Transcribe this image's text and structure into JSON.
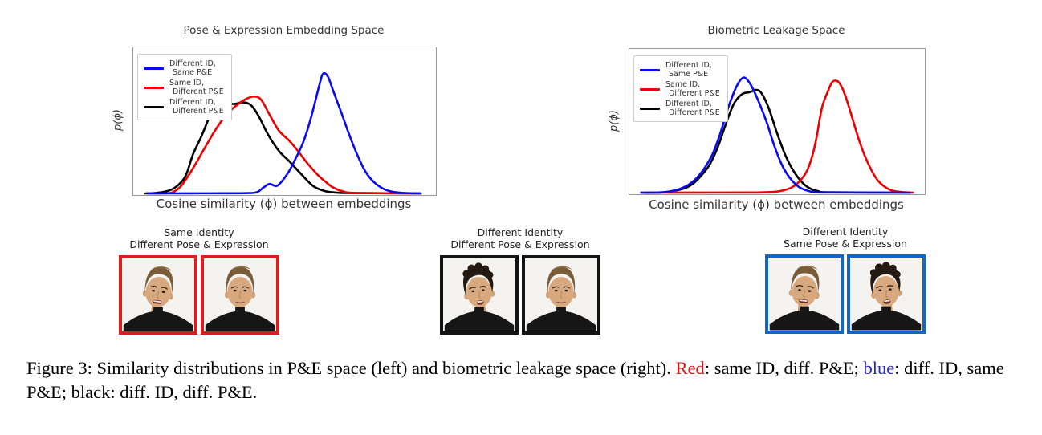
{
  "figure": {
    "charts": [
      {
        "title": "Pose & Expression Embedding Space",
        "xlabel": "Cosine similarity (ϕ) between embeddings",
        "ylabel": "p(ϕ)",
        "legend": [
          {
            "line1": "Different ID,",
            "line2": "Same P&E"
          },
          {
            "line1": "Same ID,",
            "line2": "Different P&E"
          },
          {
            "line1": "Different ID,",
            "line2": "Different P&E"
          }
        ]
      },
      {
        "title": "Biometric Leakage Space",
        "xlabel": "Cosine similarity (ϕ) between embeddings",
        "ylabel": "p(ϕ)",
        "legend": [
          {
            "line1": "Different ID,",
            "line2": "Same P&E"
          },
          {
            "line1": "Same ID,",
            "line2": "Different P&E"
          },
          {
            "line1": "Different ID,",
            "line2": "Different P&E"
          }
        ]
      }
    ],
    "pairs": [
      {
        "label_line1": "Same Identity",
        "label_line2": "Different Pose & Expression",
        "frame_color": "#d42020",
        "photos": [
          0,
          1
        ]
      },
      {
        "label_line1": "Different Identity",
        "label_line2": "Different Pose & Expression",
        "frame_color": "#141414",
        "photos": [
          2,
          3
        ]
      },
      {
        "label_line1": "Different Identity",
        "label_line2": "Same Pose & Expression",
        "frame_color": "#1565c5",
        "photos": [
          4,
          5
        ]
      }
    ],
    "photos": [
      {
        "person": "young-man-brown-hair",
        "hair": "brown",
        "tilt": 7,
        "mouth": "grimace",
        "gaze": "down"
      },
      {
        "person": "young-man-brown-hair",
        "hair": "brown",
        "tilt": 0,
        "mouth": "closed",
        "gaze": "front"
      },
      {
        "person": "young-man-dark-curly",
        "hair": "curly",
        "tilt": -6,
        "mouth": "open",
        "gaze": "left"
      },
      {
        "person": "young-man-brown-hair",
        "hair": "brown",
        "tilt": 0,
        "mouth": "closed",
        "gaze": "front"
      },
      {
        "person": "young-man-brown-hair",
        "hair": "brown",
        "tilt": 6,
        "mouth": "grimace",
        "gaze": "down"
      },
      {
        "person": "young-man-dark-curly",
        "hair": "curly",
        "tilt": -5,
        "mouth": "open",
        "gaze": "left"
      }
    ]
  },
  "caption": {
    "segments": [
      {
        "text": "Figure 3: Similarity distributions in P&E space (left) and biometric leakage space (right). ",
        "color": "#000000"
      },
      {
        "text": "Red",
        "color": "#dd1111"
      },
      {
        "text": ": same ID, diff. P&E; ",
        "color": "#000000"
      },
      {
        "text": "blue",
        "color": "#2222dd"
      },
      {
        "text": ": diff. ID, same P&E; black: diff. ID, diff. P&E.",
        "color": "#000000"
      }
    ]
  },
  "chart_data": [
    {
      "type": "line",
      "title": "Pose & Expression Embedding Space",
      "xlabel": "Cosine similarity (ϕ) between embeddings",
      "ylabel": "p(ϕ)",
      "axis_ticks": "none",
      "legend_position": "upper left",
      "note": "kernel-density style curves; x and y in normalized plot fractions (0-1), y = density height",
      "series": [
        {
          "name": "Different ID, Same P&E",
          "color": "#0a0af0",
          "z": 3,
          "points": [
            [
              0.05,
              0
            ],
            [
              0.3,
              0.001
            ],
            [
              0.38,
              0.002
            ],
            [
              0.41,
              0.01
            ],
            [
              0.43,
              0.04
            ],
            [
              0.45,
              0.065
            ],
            [
              0.476,
              0.054
            ],
            [
              0.508,
              0.13
            ],
            [
              0.534,
              0.228
            ],
            [
              0.561,
              0.348
            ],
            [
              0.582,
              0.48
            ],
            [
              0.6,
              0.62
            ],
            [
              0.616,
              0.75
            ],
            [
              0.627,
              0.82
            ],
            [
              0.643,
              0.8
            ],
            [
              0.661,
              0.7
            ],
            [
              0.688,
              0.55
            ],
            [
              0.714,
              0.4
            ],
            [
              0.741,
              0.26
            ],
            [
              0.767,
              0.15
            ],
            [
              0.794,
              0.08
            ],
            [
              0.828,
              0.03
            ],
            [
              0.86,
              0.01
            ],
            [
              0.9,
              0.002
            ],
            [
              0.95,
              0
            ]
          ]
        },
        {
          "name": "Same ID, Different P&E",
          "color": "#ee0000",
          "z": 2,
          "points": [
            [
              0.05,
              0
            ],
            [
              0.111,
              0.001
            ],
            [
              0.132,
              0.01
            ],
            [
              0.153,
              0.04
            ],
            [
              0.172,
              0.09
            ],
            [
              0.198,
              0.174
            ],
            [
              0.233,
              0.3
            ],
            [
              0.27,
              0.43
            ],
            [
              0.304,
              0.53
            ],
            [
              0.339,
              0.6
            ],
            [
              0.376,
              0.65
            ],
            [
              0.402,
              0.663
            ],
            [
              0.423,
              0.64
            ],
            [
              0.45,
              0.54
            ],
            [
              0.481,
              0.43
            ],
            [
              0.516,
              0.36
            ],
            [
              0.548,
              0.28
            ],
            [
              0.574,
              0.21
            ],
            [
              0.608,
              0.13
            ],
            [
              0.635,
              0.08
            ],
            [
              0.661,
              0.04
            ],
            [
              0.696,
              0.012
            ],
            [
              0.74,
              0.003
            ],
            [
              0.95,
              0
            ]
          ]
        },
        {
          "name": "Different ID, Different P&E",
          "color": "#000000",
          "z": 1,
          "points": [
            [
              0.04,
              0
            ],
            [
              0.07,
              0.003
            ],
            [
              0.1,
              0.01
            ],
            [
              0.13,
              0.03
            ],
            [
              0.155,
              0.07
            ],
            [
              0.175,
              0.13
            ],
            [
              0.198,
              0.27
            ],
            [
              0.225,
              0.39
            ],
            [
              0.251,
              0.52
            ],
            [
              0.272,
              0.6
            ],
            [
              0.296,
              0.624
            ],
            [
              0.331,
              0.612
            ],
            [
              0.362,
              0.624
            ],
            [
              0.389,
              0.604
            ],
            [
              0.415,
              0.527
            ],
            [
              0.444,
              0.408
            ],
            [
              0.481,
              0.292
            ],
            [
              0.516,
              0.219
            ],
            [
              0.556,
              0.13
            ],
            [
              0.595,
              0.05
            ],
            [
              0.635,
              0.015
            ],
            [
              0.675,
              0.005
            ],
            [
              0.73,
              0.002
            ],
            [
              0.95,
              0
            ]
          ]
        }
      ]
    },
    {
      "type": "line",
      "title": "Biometric Leakage Space",
      "xlabel": "Cosine similarity (ϕ) between embeddings",
      "ylabel": "p(ϕ)",
      "axis_ticks": "none",
      "legend_position": "upper left",
      "note": "kernel-density style curves; x and y in normalized plot fractions (0-1), y = density height",
      "series": [
        {
          "name": "Different ID, Same P&E",
          "color": "#0a0af0",
          "z": 3,
          "points": [
            [
              0.04,
              0
            ],
            [
              0.1,
              0.001
            ],
            [
              0.135,
              0.008
            ],
            [
              0.17,
              0.025
            ],
            [
              0.2,
              0.055
            ],
            [
              0.227,
              0.1
            ],
            [
              0.254,
              0.17
            ],
            [
              0.282,
              0.27
            ],
            [
              0.309,
              0.42
            ],
            [
              0.336,
              0.6
            ],
            [
              0.363,
              0.74
            ],
            [
              0.385,
              0.8
            ],
            [
              0.405,
              0.77
            ],
            [
              0.43,
              0.67
            ],
            [
              0.463,
              0.5
            ],
            [
              0.49,
              0.33
            ],
            [
              0.517,
              0.19
            ],
            [
              0.544,
              0.1
            ],
            [
              0.572,
              0.042
            ],
            [
              0.6,
              0.015
            ],
            [
              0.626,
              0.004
            ],
            [
              0.67,
              0.001
            ],
            [
              0.95,
              0
            ]
          ]
        },
        {
          "name": "Same ID, Different P&E",
          "color": "#ee0000",
          "z": 2,
          "points": [
            [
              0.04,
              0
            ],
            [
              0.4,
              0.001
            ],
            [
              0.45,
              0.002
            ],
            [
              0.49,
              0.005
            ],
            [
              0.52,
              0.015
            ],
            [
              0.553,
              0.04
            ],
            [
              0.581,
              0.09
            ],
            [
              0.603,
              0.16
            ],
            [
              0.621,
              0.27
            ],
            [
              0.635,
              0.4
            ],
            [
              0.644,
              0.51
            ],
            [
              0.653,
              0.6
            ],
            [
              0.662,
              0.655
            ],
            [
              0.671,
              0.7
            ],
            [
              0.685,
              0.765
            ],
            [
              0.698,
              0.78
            ],
            [
              0.712,
              0.76
            ],
            [
              0.73,
              0.68
            ],
            [
              0.753,
              0.53
            ],
            [
              0.775,
              0.38
            ],
            [
              0.798,
              0.25
            ],
            [
              0.821,
              0.15
            ],
            [
              0.843,
              0.08
            ],
            [
              0.87,
              0.033
            ],
            [
              0.898,
              0.01
            ],
            [
              0.934,
              0.002
            ],
            [
              0.96,
              0
            ]
          ]
        },
        {
          "name": "Different ID, Different P&E",
          "color": "#000000",
          "z": 1,
          "points": [
            [
              0.05,
              0
            ],
            [
              0.11,
              0.001
            ],
            [
              0.15,
              0.012
            ],
            [
              0.19,
              0.032
            ],
            [
              0.22,
              0.07
            ],
            [
              0.248,
              0.13
            ],
            [
              0.273,
              0.2
            ],
            [
              0.3,
              0.32
            ],
            [
              0.327,
              0.48
            ],
            [
              0.354,
              0.62
            ],
            [
              0.381,
              0.685
            ],
            [
              0.408,
              0.7
            ],
            [
              0.431,
              0.715
            ],
            [
              0.449,
              0.687
            ],
            [
              0.472,
              0.586
            ],
            [
              0.499,
              0.42
            ],
            [
              0.526,
              0.27
            ],
            [
              0.553,
              0.16
            ],
            [
              0.581,
              0.08
            ],
            [
              0.608,
              0.033
            ],
            [
              0.639,
              0.01
            ],
            [
              0.68,
              0.002
            ],
            [
              0.95,
              0
            ]
          ]
        }
      ]
    }
  ]
}
